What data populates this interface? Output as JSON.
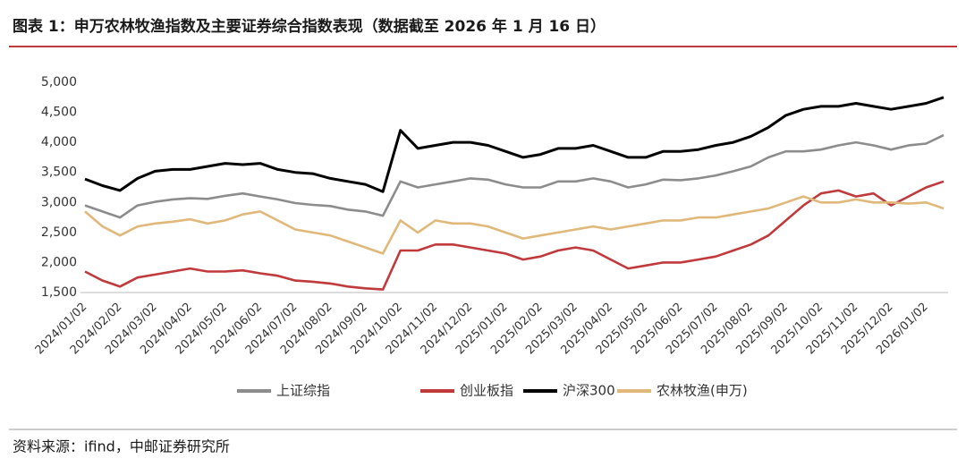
{
  "chart_data": {
    "type": "line",
    "title": "图表 1：申万农林牧渔指数及主要证券综合指数表现（数据截至 2026 年 1 月 16 日）",
    "source": "资料来源：ifind，中邮证券研究所",
    "categories": [
      "2024/01/02",
      null,
      "2024/02/02",
      null,
      "2024/03/02",
      null,
      "2024/04/02",
      null,
      "2024/05/02",
      null,
      "2024/06/02",
      null,
      "2024/07/02",
      null,
      "2024/08/02",
      null,
      "2024/09/02",
      null,
      "2024/10/02",
      null,
      "2024/11/02",
      null,
      "2024/12/02",
      null,
      "2025/01/02",
      null,
      "2025/02/02",
      null,
      "2025/03/02",
      null,
      "2025/04/02",
      null,
      "2025/05/02",
      null,
      "2025/06/02",
      null,
      "2025/07/02",
      null,
      "2025/08/02",
      null,
      "2025/09/02",
      null,
      "2025/10/02",
      null,
      "2025/11/02",
      null,
      "2025/12/02",
      null,
      "2026/01/02",
      null
    ],
    "series": [
      {
        "name": "上证综指",
        "color": "#8c8c8c",
        "values": [
          2950,
          2850,
          2750,
          2950,
          3010,
          3050,
          3070,
          3060,
          3110,
          3150,
          3100,
          3050,
          2990,
          2960,
          2940,
          2880,
          2850,
          2780,
          3350,
          3250,
          3300,
          3350,
          3400,
          3380,
          3300,
          3250,
          3250,
          3350,
          3350,
          3400,
          3350,
          3250,
          3300,
          3380,
          3370,
          3400,
          3450,
          3520,
          3600,
          3750,
          3850,
          3850,
          3880,
          3950,
          4000,
          3950,
          3880,
          3950,
          3980,
          4120
        ]
      },
      {
        "name": "创业板指",
        "color": "#c0393b",
        "values": [
          1850,
          1700,
          1600,
          1750,
          1800,
          1850,
          1900,
          1850,
          1850,
          1870,
          1820,
          1780,
          1700,
          1680,
          1650,
          1600,
          1570,
          1550,
          2200,
          2200,
          2300,
          2300,
          2250,
          2200,
          2150,
          2050,
          2100,
          2200,
          2250,
          2200,
          2050,
          1900,
          1950,
          2000,
          2000,
          2050,
          2100,
          2200,
          2300,
          2450,
          2700,
          2950,
          3150,
          3200,
          3100,
          3150,
          2950,
          3100,
          3250,
          3350
        ]
      },
      {
        "name": "沪深300",
        "color": "#000000",
        "values": [
          3390,
          3280,
          3200,
          3400,
          3520,
          3550,
          3550,
          3600,
          3650,
          3630,
          3650,
          3550,
          3500,
          3480,
          3400,
          3350,
          3300,
          3180,
          4200,
          3900,
          3950,
          4000,
          4000,
          3950,
          3850,
          3750,
          3800,
          3900,
          3900,
          3950,
          3850,
          3750,
          3750,
          3850,
          3850,
          3880,
          3950,
          4000,
          4100,
          4250,
          4450,
          4550,
          4600,
          4600,
          4650,
          4600,
          4550,
          4600,
          4650,
          4750
        ]
      },
      {
        "name": "农林牧渔(申万)",
        "color": "#e0b87a",
        "values": [
          2850,
          2600,
          2450,
          2600,
          2650,
          2680,
          2720,
          2650,
          2700,
          2800,
          2850,
          2700,
          2550,
          2500,
          2450,
          2350,
          2250,
          2150,
          2700,
          2500,
          2700,
          2650,
          2650,
          2600,
          2500,
          2400,
          2450,
          2500,
          2550,
          2600,
          2550,
          2600,
          2650,
          2700,
          2700,
          2750,
          2750,
          2800,
          2850,
          2900,
          3000,
          3100,
          3000,
          3000,
          3050,
          3000,
          3000,
          2980,
          3000,
          2900
        ]
      }
    ],
    "ylim": [
      1500,
      5000
    ],
    "yticks": [
      {
        "value": 1500,
        "label": "1,500"
      },
      {
        "value": 2000,
        "label": "2,000"
      },
      {
        "value": 2500,
        "label": "2,500"
      },
      {
        "value": 3000,
        "label": "3,000"
      },
      {
        "value": 3500,
        "label": "3,500"
      },
      {
        "value": 4000,
        "label": "4,000"
      },
      {
        "value": 4500,
        "label": "4,500"
      },
      {
        "value": 5000,
        "label": "5,000"
      }
    ],
    "grid": false,
    "legend": "bottom"
  }
}
